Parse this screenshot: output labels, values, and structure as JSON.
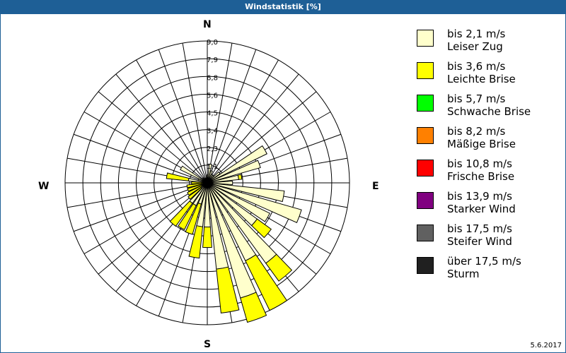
{
  "title": "Windstatistik [%]",
  "date": "5.6.2017",
  "compass": {
    "n": "N",
    "e": "E",
    "s": "S",
    "w": "W"
  },
  "legend": [
    {
      "speed": "bis 2,1 m/s",
      "name": "Leiser Zug",
      "color": "#ffffcc"
    },
    {
      "speed": "bis 3,6 m/s",
      "name": "Leichte Brise",
      "color": "#ffff00"
    },
    {
      "speed": "bis 5,7 m/s",
      "name": "Schwache Brise",
      "color": "#00ff00"
    },
    {
      "speed": "bis 8,2 m/s",
      "name": "Mäßige Brise",
      "color": "#ff8000"
    },
    {
      "speed": "bis 10,8 m/s",
      "name": "Frische Brise",
      "color": "#ff0000"
    },
    {
      "speed": "bis 13,9 m/s",
      "name": "Starker Wind",
      "color": "#800080"
    },
    {
      "speed": "bis 17,5 m/s",
      "name": "Steifer Wind",
      "color": "#606060"
    },
    {
      "speed": "über 17,5 m/s",
      "name": "Sturm",
      "color": "#202020"
    }
  ],
  "chart_data": {
    "type": "wind-rose",
    "title": "Windstatistik [%]",
    "ring_labels": [
      "1,1",
      "2,3",
      "3,4",
      "4,5",
      "5,6",
      "6,8",
      "7,9",
      "9,0"
    ],
    "rmax": 9.0,
    "sector_width_deg": 10,
    "directions_deg": [
      0,
      10,
      20,
      30,
      40,
      50,
      60,
      70,
      80,
      90,
      100,
      110,
      120,
      130,
      140,
      150,
      160,
      170,
      180,
      190,
      200,
      210,
      220,
      230,
      240,
      250,
      260,
      270,
      280,
      290,
      300,
      310,
      320,
      330,
      340,
      350
    ],
    "series": [
      {
        "name": "bis 2,1 m/s",
        "values": [
          0.5,
          1.2,
          0.8,
          0.6,
          0.6,
          1.0,
          4.2,
          3.5,
          2.0,
          1.6,
          4.9,
          6.2,
          4.4,
          3.9,
          6.3,
          5.5,
          7.6,
          5.5,
          2.8,
          2.8,
          1.4,
          1.6,
          1.6,
          0.5,
          0.4,
          0.3,
          0.3,
          0.2,
          1.2,
          0.6,
          1.9,
          0.4,
          0.4,
          0.3,
          0.3,
          0.3
        ]
      },
      {
        "name": "bis 3,6 m/s",
        "values": [
          0,
          0,
          0,
          0,
          0,
          0,
          0,
          0,
          0.2,
          0,
          0,
          0,
          0,
          1.1,
          1.4,
          3.5,
          1.6,
          2.8,
          1.3,
          2.0,
          2.0,
          1.7,
          1.8,
          1.0,
          1.0,
          1.0,
          1.0,
          0.8,
          1.4,
          0,
          0,
          0,
          0,
          0,
          0,
          0
        ]
      },
      {
        "name": "bis 5,7 m/s",
        "values": [
          0,
          0,
          0,
          0,
          0,
          0,
          0,
          0,
          0,
          0,
          0,
          0,
          0,
          0,
          0,
          0,
          0,
          0,
          0,
          0,
          0,
          0,
          0,
          0,
          0,
          0,
          0,
          0,
          0,
          0,
          0,
          0,
          0,
          0,
          0,
          0
        ]
      },
      {
        "name": "bis 8,2 m/s",
        "values": [
          0,
          0,
          0,
          0,
          0,
          0,
          0,
          0,
          0,
          0,
          0,
          0,
          0,
          0,
          0,
          0,
          0,
          0,
          0,
          0,
          0,
          0,
          0,
          0,
          0,
          0,
          0,
          0,
          0,
          0,
          0,
          0,
          0,
          0,
          0,
          0
        ]
      },
      {
        "name": "bis 10,8 m/s",
        "values": [
          0,
          0,
          0,
          0,
          0,
          0,
          0,
          0,
          0,
          0,
          0,
          0,
          0,
          0,
          0,
          0,
          0,
          0,
          0,
          0,
          0,
          0,
          0,
          0,
          0,
          0,
          0,
          0,
          0,
          0,
          0,
          0,
          0,
          0,
          0,
          0
        ]
      },
      {
        "name": "bis 13,9 m/s",
        "values": [
          0,
          0,
          0,
          0,
          0,
          0,
          0,
          0,
          0,
          0,
          0,
          0,
          0,
          0,
          0,
          0,
          0,
          0,
          0,
          0,
          0,
          0,
          0,
          0,
          0,
          0,
          0,
          0,
          0,
          0,
          0,
          0,
          0,
          0,
          0,
          0
        ]
      },
      {
        "name": "bis 17,5 m/s",
        "values": [
          0,
          0,
          0,
          0,
          0,
          0,
          0,
          0,
          0,
          0,
          0,
          0,
          0,
          0,
          0,
          0,
          0,
          0,
          0,
          0,
          0,
          0,
          0,
          0,
          0,
          0,
          0,
          0,
          0,
          0,
          0,
          0,
          0,
          0,
          0,
          0
        ]
      },
      {
        "name": "über 17,5 m/s",
        "values": [
          0,
          0,
          0,
          0,
          0,
          0,
          0,
          0,
          0,
          0,
          0,
          0,
          0,
          0,
          0,
          0,
          0,
          0,
          0,
          0,
          0,
          0,
          0,
          0,
          0,
          0,
          0,
          0,
          0,
          0,
          0,
          0,
          0,
          0,
          0,
          0
        ]
      }
    ],
    "legend_position": "right",
    "grid": true
  }
}
